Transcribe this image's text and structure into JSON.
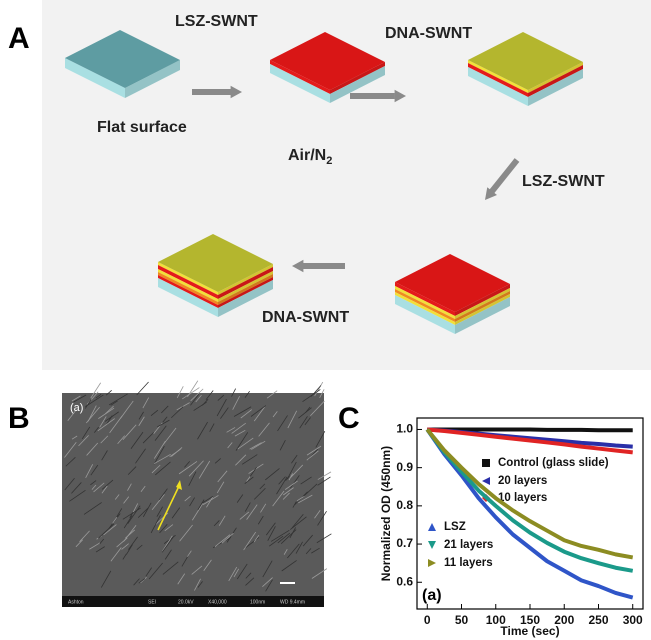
{
  "panel_a": {
    "label": "A",
    "texts": [
      "LSZ-SWNT",
      "DNA-SWNT",
      "Flat surface",
      "LSZ-SWNT",
      "DNA-SWNT"
    ],
    "air": {
      "text": "Air/N",
      "subscript": "2"
    }
  },
  "panel_b": {
    "label": "B",
    "image_label": "(a)",
    "info_bar": [
      "Ashton",
      "SEI",
      "20.0kV",
      "X40,000",
      "100nm",
      "WD 9.4mm"
    ]
  },
  "chart_data": {
    "type": "line",
    "panel_label": "C",
    "annotation": "(a)",
    "xlabel": "Time (sec)",
    "ylabel": "Normalized OD (450nm)",
    "x": [
      0,
      25,
      50,
      75,
      100,
      125,
      150,
      175,
      200,
      225,
      250,
      275,
      300
    ],
    "xlim": [
      -15,
      315
    ],
    "ylim": [
      0.53,
      1.03
    ],
    "xticks": [
      0,
      50,
      100,
      150,
      200,
      250,
      300
    ],
    "yticks": [
      0.6,
      0.7,
      0.8,
      0.9,
      {
        "value": 1,
        "label": "1.0"
      }
    ],
    "series": [
      {
        "name": "Control (glass slide)",
        "color": "#111111",
        "marker": "square",
        "values": [
          1.0,
          1.0,
          1.0,
          1.0,
          1.0,
          1.0,
          1.0,
          0.999,
          0.999,
          0.999,
          0.998,
          0.998,
          0.998
        ]
      },
      {
        "name": "20 layers",
        "color": "#2a2fa8",
        "marker": "tri-left",
        "values": [
          1.0,
          0.997,
          0.993,
          0.989,
          0.985,
          0.981,
          0.977,
          0.973,
          0.969,
          0.965,
          0.962,
          0.958,
          0.955
        ]
      },
      {
        "name": "10 layers",
        "color": "#e02424",
        "marker": "diamond",
        "values": [
          1.0,
          0.996,
          0.991,
          0.986,
          0.981,
          0.976,
          0.971,
          0.966,
          0.961,
          0.955,
          0.95,
          0.945,
          0.94
        ]
      },
      {
        "name": "LSZ",
        "color": "#2f55c8",
        "marker": "tri-up",
        "values": [
          1.0,
          0.935,
          0.88,
          0.82,
          0.77,
          0.725,
          0.69,
          0.655,
          0.63,
          0.605,
          0.59,
          0.572,
          0.56
        ]
      },
      {
        "name": "21 layers",
        "color": "#1b9a8a",
        "marker": "tri-down",
        "values": [
          1.0,
          0.94,
          0.89,
          0.84,
          0.8,
          0.762,
          0.73,
          0.703,
          0.68,
          0.663,
          0.65,
          0.638,
          0.63
        ]
      },
      {
        "name": "11 layers",
        "color": "#8c8c22",
        "marker": "tri-right",
        "values": [
          1.0,
          0.945,
          0.9,
          0.857,
          0.82,
          0.788,
          0.76,
          0.735,
          0.71,
          0.695,
          0.685,
          0.673,
          0.665
        ]
      }
    ]
  }
}
